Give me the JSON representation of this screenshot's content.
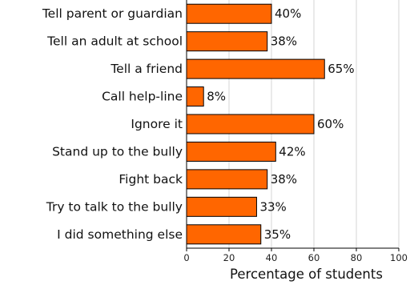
{
  "chart_data": {
    "type": "bar",
    "orientation": "horizontal",
    "title": "",
    "xlabel": "Percentage of students",
    "ylabel": "",
    "xlim": [
      0,
      100
    ],
    "xticks": [
      0,
      20,
      40,
      60,
      80,
      100
    ],
    "grid": true,
    "categories": [
      "Tell parent or guardian",
      "Tell an adult at school",
      "Tell a friend",
      "Call help-line",
      "Ignore it",
      "Stand up to the bully",
      "Fight back",
      "Try to talk to the bully",
      "I did something else"
    ],
    "values": [
      40,
      38,
      65,
      8,
      60,
      42,
      38,
      33,
      35
    ],
    "value_labels": [
      "40%",
      "38%",
      "65%",
      "8%",
      "60%",
      "42%",
      "38%",
      "33%",
      "35%"
    ],
    "bar_color": "#ff6600",
    "bar_edge_color": "#000000",
    "grid_color": "#d4d4d4"
  }
}
